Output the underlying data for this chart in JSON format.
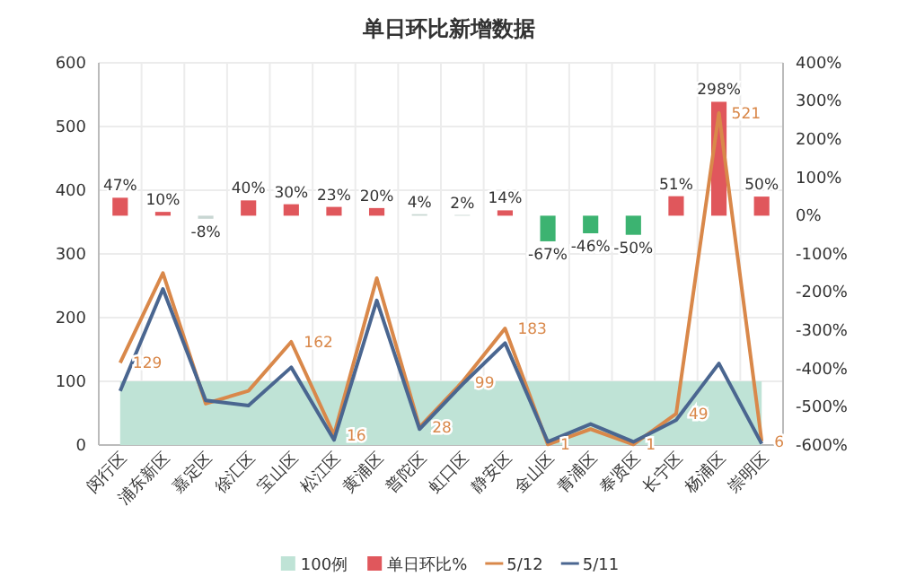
{
  "chart_data": {
    "type": "line",
    "title": "单日环比新增数据",
    "categories": [
      "闵行区",
      "浦东新区",
      "嘉定区",
      "徐汇区",
      "宝山区",
      "松江区",
      "黄浦区",
      "普陀区",
      "虹口区",
      "静安区",
      "金山区",
      "青浦区",
      "奉贤区",
      "长宁区",
      "杨浦区",
      "崇明区"
    ],
    "series": [
      {
        "type": "area",
        "name": "100例",
        "color": "#bfe3d6",
        "values": [
          100,
          100,
          100,
          100,
          100,
          100,
          100,
          100,
          100,
          100,
          100,
          100,
          100,
          100,
          100,
          100
        ]
      },
      {
        "type": "bar",
        "name": "单日环比%",
        "axis": "y2",
        "color": "#e0575c",
        "colors": [
          "#e0575c",
          "#e0575c",
          "#c8d6d2",
          "#e0575c",
          "#e0575c",
          "#e0575c",
          "#e0575c",
          "#c8d6d2",
          "#c8d6d2",
          "#e0575c",
          "#3cb371",
          "#3cb371",
          "#3cb371",
          "#e0575c",
          "#e0575c",
          "#e0575c"
        ],
        "values": [
          47,
          10,
          -8,
          40,
          30,
          23,
          20,
          4,
          2,
          14,
          -67,
          -46,
          -50,
          51,
          298,
          50
        ],
        "value_labels": [
          "47%",
          "10%",
          "-8%",
          "40%",
          "30%",
          "23%",
          "20%",
          "4%",
          "2%",
          "14%",
          "-67%",
          "-46%",
          "-50%",
          "51%",
          "298%",
          "50%"
        ]
      },
      {
        "name": "5/12",
        "color": "#d9884a",
        "values": [
          129,
          270,
          65,
          85,
          162,
          16,
          262,
          28,
          99,
          183,
          1,
          25,
          1,
          49,
          521,
          6
        ],
        "value_labels": [
          "129",
          null,
          null,
          null,
          "162",
          "16",
          null,
          "28",
          "99",
          "183",
          "1",
          null,
          "1",
          "49",
          "521",
          "6"
        ]
      },
      {
        "name": "5/11",
        "color": "#4a6690",
        "values": [
          85,
          245,
          70,
          62,
          122,
          8,
          227,
          25,
          95,
          160,
          5,
          33,
          5,
          39,
          128,
          2
        ]
      }
    ],
    "ylim": [
      0,
      600
    ],
    "yticks": [
      0,
      100,
      200,
      300,
      400,
      500,
      600
    ],
    "y2lim": [
      -600,
      400
    ],
    "y2ticks": [
      {
        "value": -600,
        "label": "-600%"
      },
      {
        "value": -500,
        "label": "-500%"
      },
      {
        "value": -400,
        "label": "-400%"
      },
      {
        "value": -300,
        "label": "-300%"
      },
      {
        "value": -200,
        "label": "-200%"
      },
      {
        "value": -100,
        "label": "-100%"
      },
      {
        "value": 0,
        "label": "0%"
      },
      {
        "value": 100,
        "label": "100%"
      },
      {
        "value": 200,
        "label": "200%"
      },
      {
        "value": 300,
        "label": "300%"
      },
      {
        "value": 400,
        "label": "400%"
      }
    ],
    "grid": true,
    "legend": "bottom",
    "marker": "none",
    "line_style": "solid"
  }
}
